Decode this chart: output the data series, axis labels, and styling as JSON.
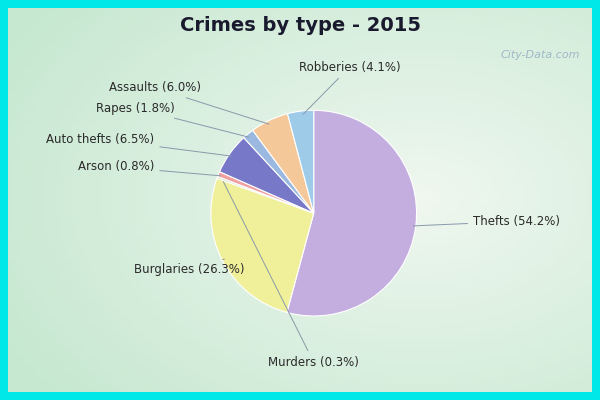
{
  "title": "Crimes by type - 2015",
  "labels": [
    "Thefts",
    "Burglaries",
    "Murders",
    "Robberies",
    "Assaults",
    "Rapes",
    "Auto thefts",
    "Arson"
  ],
  "values": [
    54.2,
    26.3,
    0.3,
    4.1,
    6.0,
    1.8,
    6.5,
    0.8
  ],
  "colors": [
    "#c4aee0",
    "#f0f09a",
    "#b8ddb0",
    "#9ecce8",
    "#f5c89a",
    "#9ab8e0",
    "#7878c8",
    "#f0a0a0"
  ],
  "bg_cyan": "#00e8e8",
  "bg_main_light": "#e8f5e8",
  "bg_main_dark": "#c8e8d8",
  "title_color": "#1a1a2e",
  "title_fontsize": 14,
  "label_fontsize": 8.5,
  "watermark": "City-Data.com"
}
